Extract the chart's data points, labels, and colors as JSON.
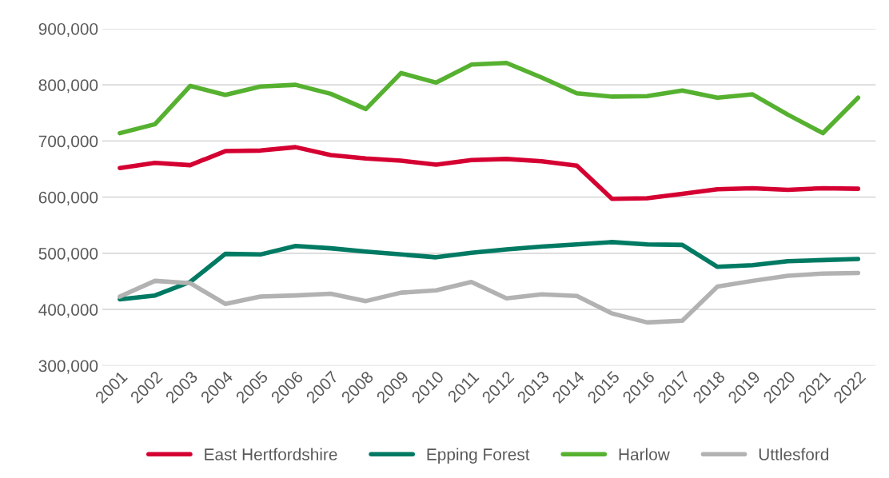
{
  "chart_data": {
    "type": "line",
    "categories": [
      "2001",
      "2002",
      "2003",
      "2004",
      "2005",
      "2006",
      "2007",
      "2008",
      "2009",
      "2010",
      "2011",
      "2012",
      "2013",
      "2014",
      "2015",
      "2016",
      "2017",
      "2018",
      "2019",
      "2020",
      "2021",
      "2022"
    ],
    "series": [
      {
        "name": "East Hertfordshire",
        "color": "#d50032",
        "values": [
          652000,
          661000,
          657000,
          682000,
          683000,
          689000,
          675000,
          669000,
          665000,
          658000,
          666000,
          668000,
          664000,
          656000,
          597000,
          598000,
          606000,
          614000,
          616000,
          613000,
          616000,
          615000
        ]
      },
      {
        "name": "Epping Forest",
        "color": "#007a63",
        "values": [
          418000,
          425000,
          449000,
          499000,
          498000,
          513000,
          509000,
          503000,
          498000,
          493000,
          501000,
          507000,
          512000,
          516000,
          520000,
          516000,
          515000,
          476000,
          479000,
          486000,
          488000,
          490000
        ]
      },
      {
        "name": "Harlow",
        "color": "#56b130",
        "values": [
          714000,
          730000,
          798000,
          782000,
          797000,
          800000,
          784000,
          757000,
          821000,
          804000,
          836000,
          839000,
          813000,
          785000,
          779000,
          780000,
          790000,
          777000,
          783000,
          747000,
          714000,
          777000
        ]
      },
      {
        "name": "Uttlesford",
        "color": "#b2b2b2",
        "values": [
          423000,
          451000,
          447000,
          410000,
          423000,
          425000,
          428000,
          415000,
          430000,
          434000,
          449000,
          420000,
          427000,
          424000,
          393000,
          377000,
          380000,
          441000,
          451000,
          460000,
          464000,
          465000
        ]
      }
    ],
    "ylim": [
      300000,
      900000
    ],
    "yticks": [
      {
        "value": 300000,
        "label": "300,000"
      },
      {
        "value": 400000,
        "label": "400,000"
      },
      {
        "value": 500000,
        "label": "500,000"
      },
      {
        "value": 600000,
        "label": "600,000"
      },
      {
        "value": 700000,
        "label": "700,000"
      },
      {
        "value": 800000,
        "label": "800,000"
      },
      {
        "value": 900000,
        "label": "900,000"
      }
    ],
    "grid": "y",
    "legend": "bottom",
    "marker": "none",
    "line_style": "solid"
  }
}
